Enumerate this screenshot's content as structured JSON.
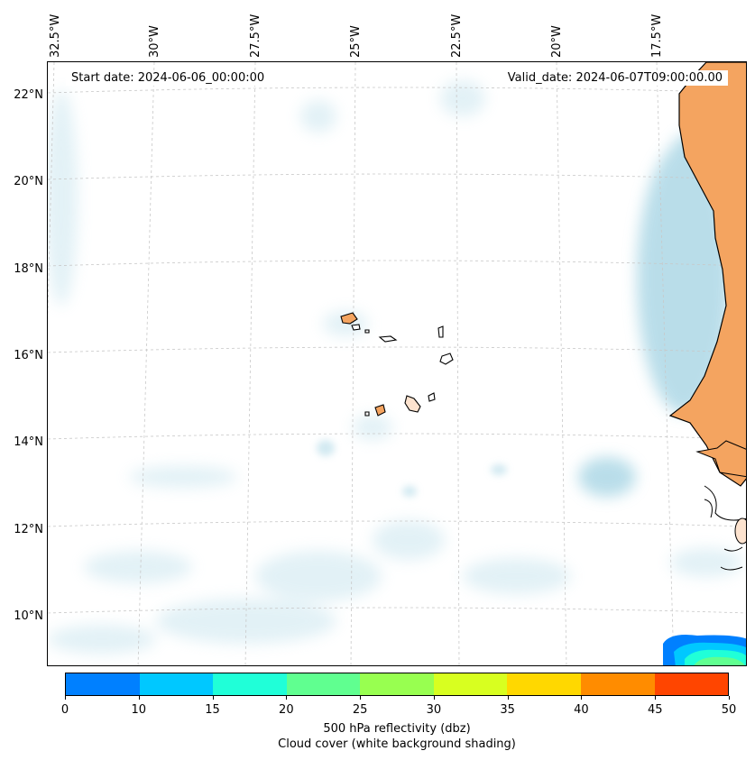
{
  "map": {
    "start_date_text": "Start date: 2024-06-06_00:00:00",
    "valid_date_text": "Valid_date: 2024-06-07T09:00:00.00",
    "longitude_labels": [
      "32.5°W",
      "30°W",
      "27.5°W",
      "25°W",
      "22.5°W",
      "20°W",
      "17.5°W"
    ],
    "latitude_labels": [
      "22°N",
      "20°N",
      "18°N",
      "16°N",
      "14°N",
      "12°N",
      "10°N"
    ],
    "colors": {
      "land": "#f4a460",
      "cloud": "#add8e6",
      "coastline": "#000000",
      "gridline": "#b0b0b0"
    }
  },
  "colorbar": {
    "ticks": [
      "0",
      "10",
      "15",
      "20",
      "25",
      "30",
      "35",
      "40",
      "45",
      "50"
    ],
    "colors": [
      "#0080ff",
      "#00c8ff",
      "#20ffd8",
      "#60ff90",
      "#98ff50",
      "#d8ff20",
      "#ffd800",
      "#ff8c00",
      "#ff4500"
    ],
    "label_line1": "500 hPa reflectivity (dbz)",
    "label_line2": "Cloud cover (white background shading)"
  }
}
